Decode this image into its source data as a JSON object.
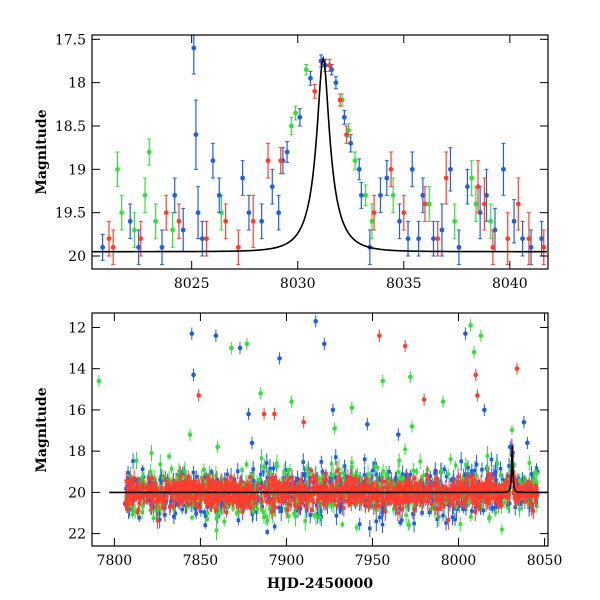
{
  "colors": {
    "green": "#33e03a",
    "blue": "#1f5fe0",
    "red": "#ff3d2e",
    "axis": "#000000"
  },
  "chart_data": [
    {
      "type": "scatter",
      "panel": "top",
      "xlabel": "",
      "ylabel": "Magnitude",
      "xlim": [
        8020.3,
        8041.8
      ],
      "ylim": [
        17.45,
        20.15
      ],
      "y_inverted": true,
      "xticks": [
        8025,
        8030,
        8035,
        8040
      ],
      "yticks": [
        17.5,
        18,
        18.5,
        19,
        19.5,
        20
      ],
      "grid": false,
      "legend": "none",
      "model_curve": {
        "t0": 8031.2,
        "peak_mag": 17.72,
        "baseline_mag": 19.95,
        "tE": 1.15
      },
      "series": [
        {
          "color": "green",
          "points": [
            [
              8021.5,
              19.0,
              0.2
            ],
            [
              8021.7,
              19.5,
              0.2
            ],
            [
              8022.3,
              19.7,
              0.2
            ],
            [
              8022.8,
              19.3,
              0.2
            ],
            [
              8023.0,
              18.8,
              0.15
            ],
            [
              8023.3,
              19.6,
              0.2
            ],
            [
              8024.1,
              19.7,
              0.2
            ],
            [
              8026.4,
              19.5,
              0.2
            ],
            [
              8029.7,
              18.5,
              0.1
            ],
            [
              8029.9,
              18.35,
              0.08
            ],
            [
              8030.4,
              17.85,
              0.06
            ],
            [
              8032.1,
              18.2,
              0.07
            ],
            [
              8032.4,
              18.55,
              0.08
            ],
            [
              8032.7,
              18.9,
              0.1
            ],
            [
              8033.2,
              19.3,
              0.12
            ],
            [
              8033.5,
              19.6,
              0.2
            ],
            [
              8034.5,
              19.3,
              0.2
            ],
            [
              8036.2,
              19.4,
              0.2
            ],
            [
              8037.4,
              19.6,
              0.2
            ],
            [
              8038.2,
              19.1,
              0.2
            ],
            [
              8038.4,
              19.4,
              0.2
            ],
            [
              8039.1,
              19.6,
              0.2
            ]
          ]
        },
        {
          "color": "blue",
          "points": [
            [
              8020.8,
              19.9,
              0.15
            ],
            [
              8022.1,
              19.6,
              0.2
            ],
            [
              8022.5,
              19.9,
              0.2
            ],
            [
              8023.6,
              19.9,
              0.2
            ],
            [
              8024.2,
              19.3,
              0.2
            ],
            [
              8024.6,
              19.7,
              0.25
            ],
            [
              8025.1,
              17.6,
              0.3
            ],
            [
              8025.2,
              18.6,
              0.4
            ],
            [
              8025.3,
              19.5,
              0.3
            ],
            [
              8025.5,
              19.8,
              0.2
            ],
            [
              8026.0,
              18.9,
              0.2
            ],
            [
              8026.3,
              19.3,
              0.2
            ],
            [
              8027.4,
              19.1,
              0.2
            ],
            [
              8027.7,
              19.5,
              0.2
            ],
            [
              8028.3,
              19.6,
              0.2
            ],
            [
              8028.8,
              19.2,
              0.2
            ],
            [
              8029.1,
              19.5,
              0.2
            ],
            [
              8029.3,
              18.9,
              0.15
            ],
            [
              8029.5,
              18.8,
              0.12
            ],
            [
              8030.1,
              18.4,
              0.1
            ],
            [
              8030.6,
              17.95,
              0.08
            ],
            [
              8031.1,
              17.75,
              0.07
            ],
            [
              8031.3,
              17.8,
              0.07
            ],
            [
              8031.6,
              17.85,
              0.06
            ],
            [
              8031.8,
              18.0,
              0.07
            ],
            [
              8032.2,
              18.4,
              0.08
            ],
            [
              8032.5,
              18.7,
              0.1
            ],
            [
              8032.9,
              19.0,
              0.12
            ],
            [
              8033.0,
              19.3,
              0.15
            ],
            [
              8033.4,
              19.9,
              0.2
            ],
            [
              8033.9,
              19.3,
              0.2
            ],
            [
              8034.2,
              19.1,
              0.2
            ],
            [
              8034.8,
              19.6,
              0.2
            ],
            [
              8035.2,
              19.8,
              0.2
            ],
            [
              8035.4,
              19.0,
              0.2
            ],
            [
              8035.7,
              19.8,
              0.2
            ],
            [
              8035.9,
              19.3,
              0.2
            ],
            [
              8036.4,
              19.8,
              0.2
            ],
            [
              8036.8,
              19.7,
              0.3
            ],
            [
              8037.2,
              19.0,
              0.25
            ],
            [
              8037.6,
              19.9,
              0.2
            ],
            [
              8038.0,
              19.2,
              0.2
            ],
            [
              8038.6,
              19.5,
              0.3
            ],
            [
              8038.9,
              19.3,
              0.3
            ],
            [
              8039.3,
              19.7,
              0.25
            ],
            [
              8039.7,
              19.0,
              0.3
            ],
            [
              8040.2,
              19.6,
              0.25
            ],
            [
              8040.6,
              19.8,
              0.2
            ],
            [
              8041.0,
              19.9,
              0.2
            ],
            [
              8041.5,
              19.8,
              0.2
            ]
          ]
        },
        {
          "color": "red",
          "points": [
            [
              8021.1,
              19.8,
              0.2
            ],
            [
              8021.3,
              19.9,
              0.2
            ],
            [
              8022.6,
              19.8,
              0.2
            ],
            [
              8023.8,
              19.5,
              0.2
            ],
            [
              8024.4,
              19.6,
              0.2
            ],
            [
              8025.7,
              19.8,
              0.2
            ],
            [
              8026.6,
              19.6,
              0.2
            ],
            [
              8027.2,
              19.9,
              0.2
            ],
            [
              8027.9,
              19.6,
              0.3
            ],
            [
              8028.6,
              18.9,
              0.2
            ],
            [
              8029.2,
              18.9,
              0.15
            ],
            [
              8030.8,
              18.1,
              0.08
            ],
            [
              8031.5,
              17.8,
              0.07
            ],
            [
              8032.0,
              18.2,
              0.07
            ],
            [
              8032.3,
              18.6,
              0.1
            ],
            [
              8033.6,
              19.5,
              0.2
            ],
            [
              8034.4,
              19.0,
              0.2
            ],
            [
              8035.0,
              19.5,
              0.2
            ],
            [
              8036.0,
              19.4,
              0.2
            ],
            [
              8036.6,
              19.8,
              0.2
            ],
            [
              8037.0,
              19.1,
              0.3
            ],
            [
              8038.5,
              19.2,
              0.3
            ],
            [
              8038.8,
              19.4,
              0.3
            ],
            [
              8039.2,
              19.9,
              0.2
            ],
            [
              8039.9,
              19.8,
              0.3
            ],
            [
              8040.4,
              19.4,
              0.3
            ],
            [
              8040.9,
              19.8,
              0.3
            ],
            [
              8041.6,
              19.9,
              0.2
            ]
          ]
        }
      ]
    },
    {
      "type": "scatter",
      "panel": "bottom",
      "xlabel": "HJD-2450000",
      "ylabel": "Magnitude",
      "xlim": [
        7787,
        8052
      ],
      "ylim": [
        11.3,
        22.6
      ],
      "y_inverted": true,
      "xticks": [
        7800,
        7850,
        7900,
        7950,
        8000,
        8050
      ],
      "yticks": [
        12,
        14,
        16,
        18,
        20,
        22
      ],
      "grid": false,
      "legend": "none",
      "baseline_mag": 20.0,
      "model_peak": {
        "t0": 8031.2,
        "peak_mag": 17.72,
        "tE": 1.15
      },
      "outliers": {
        "green": [
          [
            7791,
            14.6
          ],
          [
            7844,
            17.2
          ],
          [
            7852,
            18.9
          ],
          [
            7868,
            13.0
          ],
          [
            7877,
            12.8
          ],
          [
            7885,
            15.2
          ],
          [
            7903,
            15.6
          ],
          [
            7928,
            16.9
          ],
          [
            7938,
            15.9
          ],
          [
            7956,
            14.6
          ],
          [
            7972,
            14.4
          ],
          [
            7973,
            16.8
          ],
          [
            7991,
            15.6
          ],
          [
            8007,
            11.9
          ],
          [
            8009,
            13.2
          ],
          [
            8013,
            12.4
          ],
          [
            7860,
            17.8
          ]
        ],
        "blue": [
          [
            7845,
            12.3
          ],
          [
            7846,
            14.3
          ],
          [
            7859,
            12.4
          ],
          [
            7873,
            13.0
          ],
          [
            7878,
            16.2
          ],
          [
            7880,
            17.6
          ],
          [
            7896,
            13.5
          ],
          [
            7917,
            11.7
          ],
          [
            7922,
            12.8
          ],
          [
            7927,
            16.0
          ],
          [
            7947,
            16.7
          ],
          [
            7965,
            17.2
          ],
          [
            8004,
            12.3
          ],
          [
            8015,
            16.0
          ],
          [
            8030,
            17.8
          ],
          [
            8038,
            16.6
          ],
          [
            8040,
            17.6
          ]
        ],
        "red": [
          [
            7849,
            15.3
          ],
          [
            7887,
            16.2
          ],
          [
            7893,
            16.2
          ],
          [
            7910,
            16.6
          ],
          [
            7954,
            12.4
          ],
          [
            7969,
            12.9
          ],
          [
            7980,
            15.5
          ],
          [
            8010,
            14.3
          ],
          [
            8011,
            15.3
          ],
          [
            8034,
            14.0
          ]
        ]
      }
    }
  ]
}
